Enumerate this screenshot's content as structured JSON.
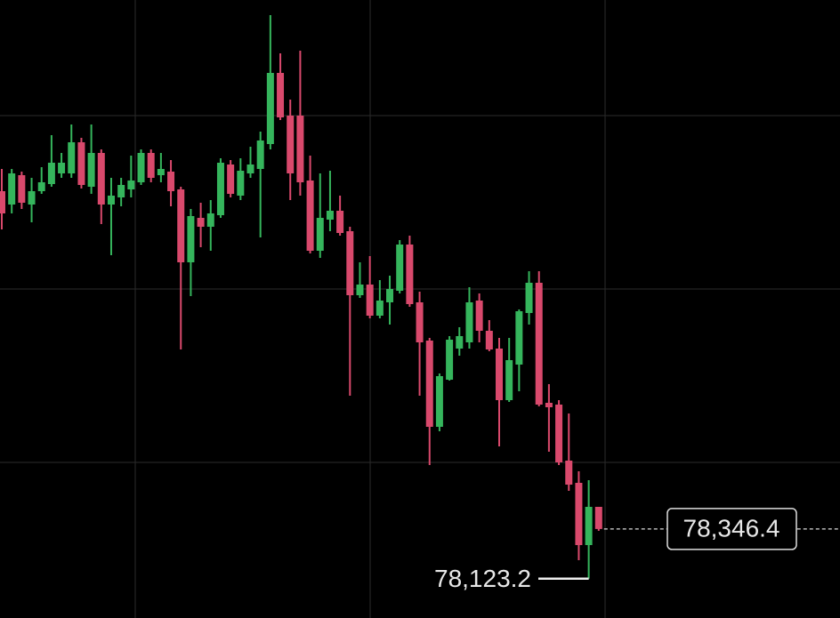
{
  "chart_data": {
    "type": "candlestick",
    "up_color": "#35b55c",
    "down_color": "#d9496c",
    "ylim": [
      77946,
      80726
    ],
    "open": [
      79866,
      79806,
      79938,
      79806,
      79866,
      79898,
      79946,
      79946,
      80086,
      79886,
      80038,
      79806,
      79838,
      79874,
      79906,
      80038,
      79938,
      79954,
      79874,
      79546,
      79746,
      79706,
      79758,
      79986,
      79846,
      79946,
      79966,
      80078,
      80398,
      80206,
      80206,
      79914,
      79598,
      79738,
      79778,
      79686,
      79398,
      79446,
      79306,
      79366,
      79418,
      79626,
      79366,
      79194,
      78806,
      79018,
      79158,
      79186,
      79374,
      79238,
      79158,
      78926,
      79086,
      79318,
      79454,
      78914,
      78906,
      78654,
      78554,
      78274,
      78446
    ],
    "high": [
      79966,
      79966,
      79954,
      79926,
      79974,
      80118,
      80038,
      80166,
      80106,
      80166,
      80054,
      79926,
      79926,
      80026,
      80054,
      80054,
      80038,
      80006,
      79886,
      79786,
      79814,
      79826,
      80014,
      80006,
      80014,
      80066,
      80134,
      80658,
      80486,
      80278,
      80498,
      80026,
      79946,
      79958,
      79846,
      79706,
      79546,
      79574,
      79466,
      79486,
      79646,
      79666,
      79414,
      79206,
      79046,
      79214,
      79254,
      79434,
      79406,
      79286,
      79206,
      79206,
      79334,
      79506,
      79506,
      78998,
      78926,
      78866,
      78606,
      78566,
      78446
    ],
    "low": [
      79694,
      79766,
      79786,
      79726,
      79854,
      79886,
      79926,
      79926,
      79878,
      79854,
      79718,
      79578,
      79798,
      79838,
      79894,
      79906,
      79906,
      79798,
      79154,
      79394,
      79614,
      79598,
      79746,
      79838,
      79826,
      79926,
      79658,
      80054,
      80186,
      79826,
      79846,
      79586,
      79566,
      79686,
      79666,
      78946,
      79386,
      79294,
      79294,
      79266,
      79406,
      79346,
      78946,
      78634,
      78786,
      79014,
      79126,
      79158,
      79186,
      79146,
      78718,
      78918,
      78966,
      79266,
      78898,
      78694,
      78634,
      78518,
      78206,
      78123.2,
      78338
    ],
    "close": [
      79766,
      79946,
      79814,
      79866,
      79906,
      79994,
      79994,
      80086,
      79894,
      80038,
      79806,
      79846,
      79894,
      79914,
      80038,
      79926,
      79966,
      79866,
      79546,
      79754,
      79706,
      79766,
      79994,
      79854,
      79958,
      79986,
      80094,
      80398,
      80198,
      79946,
      79906,
      79598,
      79746,
      79778,
      79678,
      79398,
      79446,
      79306,
      79374,
      79426,
      79626,
      79358,
      79186,
      78806,
      79034,
      79198,
      79214,
      79366,
      79238,
      79154,
      78926,
      79106,
      79326,
      79454,
      78906,
      78894,
      78646,
      78546,
      78274,
      78446,
      78346.4
    ],
    "annotations": [
      {
        "value": 78346.4,
        "label": "78,346.4"
      },
      {
        "value": 78123.2,
        "label": "78,123.2"
      }
    ]
  }
}
